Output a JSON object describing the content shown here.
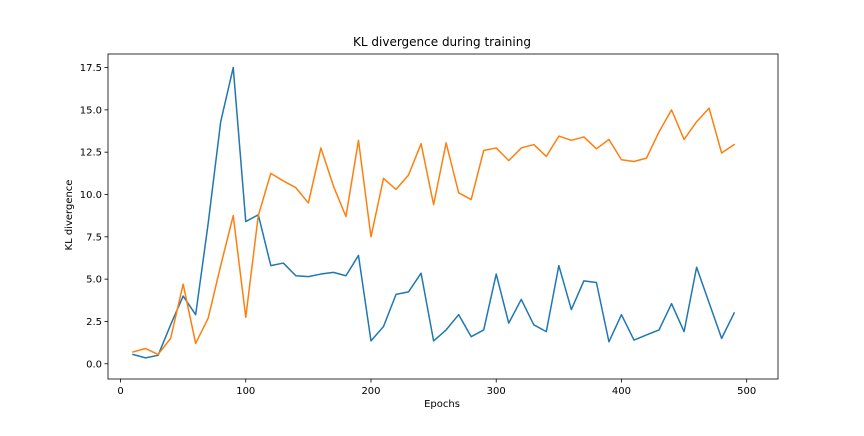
{
  "chart_data": {
    "type": "line",
    "title": "KL divergence during training",
    "xlabel": "Epochs",
    "ylabel": "KL divergence",
    "xlim": [
      -10,
      525
    ],
    "ylim": [
      -0.9,
      18.3
    ],
    "xticks": [
      0,
      100,
      200,
      300,
      400,
      500
    ],
    "xtick_labels": [
      "0",
      "100",
      "200",
      "300",
      "400",
      "500"
    ],
    "yticks": [
      0,
      2.5,
      5,
      7.5,
      10,
      12.5,
      15,
      17.5
    ],
    "ytick_labels": [
      "0.0",
      "2.5",
      "5.0",
      "7.5",
      "10.0",
      "12.5",
      "15.0",
      "17.5"
    ],
    "grid": false,
    "legend": null,
    "x": [
      10,
      20,
      30,
      40,
      50,
      60,
      70,
      80,
      90,
      100,
      110,
      120,
      130,
      140,
      150,
      160,
      170,
      180,
      190,
      200,
      210,
      220,
      230,
      240,
      250,
      260,
      270,
      280,
      290,
      300,
      310,
      320,
      330,
      340,
      350,
      360,
      370,
      380,
      390,
      400,
      410,
      420,
      430,
      440,
      450,
      460,
      470,
      480,
      490,
      500
    ],
    "series": [
      {
        "color": "#1f77b4",
        "values": [
          0.55,
          0.35,
          0.5,
          2.3,
          4.0,
          2.9,
          8.3,
          14.3,
          17.5,
          8.4,
          8.8,
          5.8,
          5.95,
          5.2,
          5.15,
          5.3,
          5.4,
          5.2,
          6.4,
          1.35,
          2.2,
          4.1,
          4.25,
          5.35,
          1.35,
          2.0,
          2.9,
          1.6,
          2.0,
          5.3,
          2.4,
          3.8,
          2.3,
          1.9,
          5.8,
          3.2,
          4.9,
          4.8,
          1.3,
          2.9,
          1.4,
          1.7,
          2.0,
          3.55,
          1.9,
          5.7,
          3.6,
          1.5,
          3.0,
          null
        ]
      },
      {
        "color": "#ff7f0e",
        "values": [
          0.7,
          0.9,
          0.55,
          1.5,
          4.7,
          1.2,
          2.7,
          5.8,
          8.75,
          2.75,
          8.75,
          11.25,
          10.8,
          10.4,
          9.5,
          12.75,
          10.5,
          8.7,
          13.2,
          7.5,
          10.95,
          10.3,
          11.15,
          13.0,
          9.4,
          13.05,
          10.1,
          9.7,
          12.6,
          12.75,
          12.0,
          12.75,
          12.95,
          12.25,
          13.45,
          13.2,
          13.4,
          12.7,
          13.25,
          12.05,
          11.95,
          12.15,
          13.7,
          15.0,
          13.25,
          14.3,
          15.1,
          12.45,
          12.95,
          null
        ]
      }
    ]
  }
}
